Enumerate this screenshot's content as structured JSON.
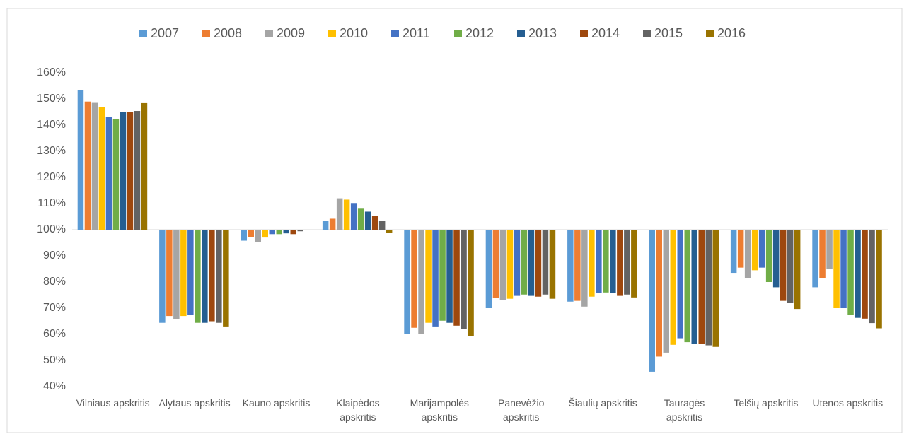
{
  "chart_data": {
    "type": "bar",
    "categories": [
      "Vilniaus apskritis",
      "Alytaus apskritis",
      "Kauno apskritis",
      "Klaipėdos apskritis",
      "Marijampolės apskritis",
      "Panevėžio apskritis",
      "Šiaulių apskritis",
      "Tauragės apskritis",
      "Telšių apskritis",
      "Utenos apskritis"
    ],
    "series": [
      {
        "name": "2007",
        "color": "#5b9bd5",
        "values": [
          153.5,
          64.4,
          95.8,
          103.4,
          60,
          70,
          72.5,
          45.7,
          83.5,
          78
        ]
      },
      {
        "name": "2008",
        "color": "#ed7d31",
        "values": [
          149,
          67,
          97.2,
          104.2,
          62.5,
          73.9,
          72.8,
          51.5,
          85.5,
          81.5
        ]
      },
      {
        "name": "2009",
        "color": "#a5a5a5",
        "values": [
          148.5,
          65.7,
          95.3,
          112,
          60,
          73,
          70.6,
          53,
          81.5,
          85
        ]
      },
      {
        "name": "2010",
        "color": "#ffc000",
        "values": [
          147,
          67,
          97,
          111.5,
          64.4,
          73.6,
          74.4,
          56,
          84.5,
          70
        ]
      },
      {
        "name": "2011",
        "color": "#4472c4",
        "values": [
          143,
          67.4,
          98.3,
          110.2,
          63,
          74.7,
          75.8,
          58.5,
          85.5,
          70
        ]
      },
      {
        "name": "2012",
        "color": "#70ad47",
        "values": [
          142.4,
          64.4,
          98.3,
          108.3,
          65.2,
          75.2,
          76,
          57,
          80,
          67.3
        ]
      },
      {
        "name": "2013",
        "color": "#255e91",
        "values": [
          145,
          64.4,
          98.6,
          106.9,
          64.4,
          74.7,
          75.8,
          56.3,
          78,
          66.3
        ]
      },
      {
        "name": "2014",
        "color": "#9e480e",
        "values": [
          145,
          65,
          98.3,
          105.3,
          63.3,
          74.4,
          74.7,
          56.3,
          72.8,
          66
        ]
      },
      {
        "name": "2015",
        "color": "#636363",
        "values": [
          145.4,
          64.4,
          99.4,
          103.4,
          62,
          75.2,
          75.2,
          55.8,
          72,
          64.3
        ]
      },
      {
        "name": "2016",
        "color": "#997300",
        "values": [
          148.4,
          63,
          99.8,
          98.8,
          59.2,
          73.6,
          74.1,
          55.2,
          69.7,
          62.3
        ]
      }
    ],
    "bar_base": 100,
    "ylim": [
      40,
      160
    ],
    "yticks": [
      {
        "value": 40,
        "label": "40%"
      },
      {
        "value": 50,
        "label": "50%"
      },
      {
        "value": 60,
        "label": "60%"
      },
      {
        "value": 70,
        "label": "70%"
      },
      {
        "value": 80,
        "label": "80%"
      },
      {
        "value": 90,
        "label": "90%"
      },
      {
        "value": 100,
        "label": "100%"
      },
      {
        "value": 110,
        "label": "110%"
      },
      {
        "value": 120,
        "label": "120%"
      },
      {
        "value": 130,
        "label": "130%"
      },
      {
        "value": 140,
        "label": "140%"
      },
      {
        "value": 150,
        "label": "150%"
      },
      {
        "value": 160,
        "label": "160%"
      }
    ],
    "legend": "top"
  }
}
